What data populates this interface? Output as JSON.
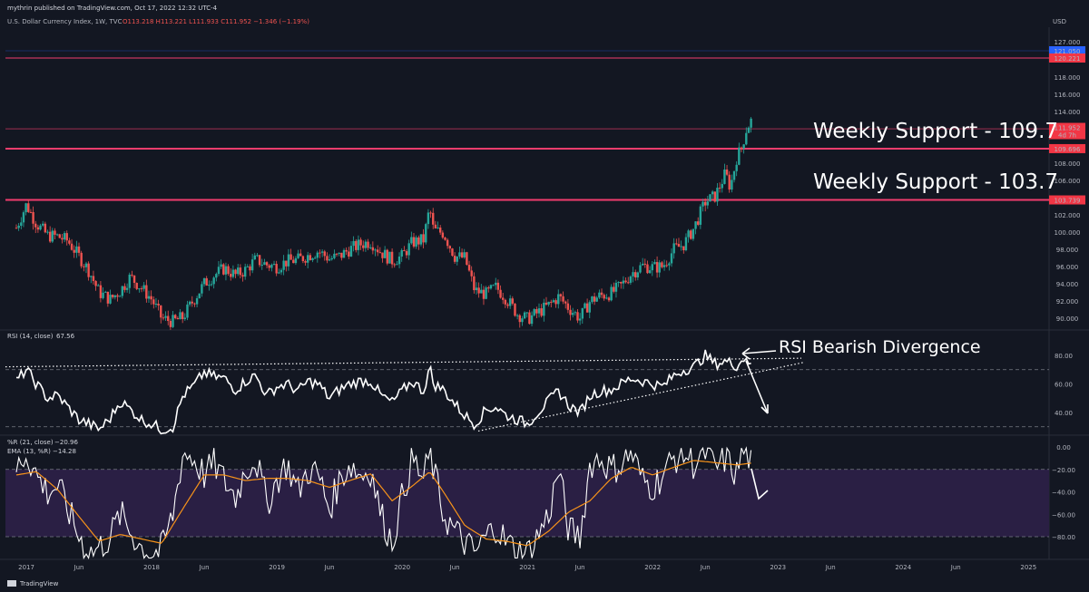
{
  "header": {
    "publisher": "mythrin published on TradingView.com, Oct 17, 2022 12:32 UTC-4",
    "symbol_line": "U.S. Dollar Currency Index, 1W, TVC",
    "ohlc": "O113.218  H113.221  L111.933  C111.952  −1.346 (−1.19%)",
    "currency": "USD"
  },
  "branding": {
    "logo_text": "TradingView"
  },
  "colors": {
    "background": "#131722",
    "up_candle": "#26a69a",
    "down_candle": "#ef5350",
    "support_line": "#f23d6d",
    "rsi_line": "#ffffff",
    "wr_line": "#ffffff",
    "ema_line": "#f7931a",
    "wr_band": "#2a1f44",
    "price_tag": "#f23645",
    "blue_tag": "#2962ff"
  },
  "chart_data": [
    {
      "type": "candlestick",
      "panel": "price",
      "title": "U.S. Dollar Currency Index, 1W, TVC",
      "x_ticks": [
        "2017",
        "Jun",
        "2018",
        "Jun",
        "2019",
        "Jun",
        "2020",
        "Jun",
        "2021",
        "Jun",
        "2022",
        "Jun",
        "2023",
        "Jun",
        "2024",
        "Jun",
        "2025"
      ],
      "y_ticks": [
        "90.000",
        "92.000",
        "94.000",
        "96.000",
        "98.000",
        "100.000",
        "102.000",
        "104.000",
        "106.000",
        "108.000",
        "110.000",
        "112.000",
        "114.000",
        "116.000",
        "118.000",
        "120.000",
        "122.000",
        "127.000"
      ],
      "ylim": [
        89,
        127
      ],
      "close_series": [
        [
          2016.92,
          100.5
        ],
        [
          2017.0,
          103.2
        ],
        [
          2017.08,
          101.0
        ],
        [
          2017.17,
          99.6
        ],
        [
          2017.25,
          99.5
        ],
        [
          2017.33,
          99.0
        ],
        [
          2017.42,
          97.2
        ],
        [
          2017.5,
          95.5
        ],
        [
          2017.58,
          93.0
        ],
        [
          2017.67,
          92.2
        ],
        [
          2017.75,
          93.2
        ],
        [
          2017.83,
          94.8
        ],
        [
          2017.92,
          93.5
        ],
        [
          2018.0,
          92.2
        ],
        [
          2018.08,
          90.0
        ],
        [
          2018.17,
          89.6
        ],
        [
          2018.25,
          90.1
        ],
        [
          2018.33,
          92.0
        ],
        [
          2018.42,
          94.0
        ],
        [
          2018.5,
          95.0
        ],
        [
          2018.58,
          95.8
        ],
        [
          2018.67,
          95.0
        ],
        [
          2018.75,
          95.6
        ],
        [
          2018.83,
          96.8
        ],
        [
          2018.92,
          96.2
        ],
        [
          2019.0,
          96.0
        ],
        [
          2019.08,
          96.6
        ],
        [
          2019.17,
          96.8
        ],
        [
          2019.25,
          97.3
        ],
        [
          2019.33,
          97.8
        ],
        [
          2019.42,
          96.9
        ],
        [
          2019.5,
          97.2
        ],
        [
          2019.58,
          98.0
        ],
        [
          2019.67,
          98.6
        ],
        [
          2019.75,
          98.9
        ],
        [
          2019.83,
          97.7
        ],
        [
          2019.92,
          96.7
        ],
        [
          2020.0,
          97.2
        ],
        [
          2020.08,
          98.8
        ],
        [
          2020.17,
          99.1
        ],
        [
          2020.22,
          102.8
        ],
        [
          2020.25,
          100.2
        ],
        [
          2020.33,
          99.9
        ],
        [
          2020.42,
          97.2
        ],
        [
          2020.5,
          97.0
        ],
        [
          2020.58,
          93.2
        ],
        [
          2020.67,
          92.8
        ],
        [
          2020.75,
          93.6
        ],
        [
          2020.83,
          92.3
        ],
        [
          2020.92,
          90.5
        ],
        [
          2021.0,
          89.9
        ],
        [
          2021.08,
          90.6
        ],
        [
          2021.17,
          91.5
        ],
        [
          2021.25,
          92.5
        ],
        [
          2021.33,
          91.2
        ],
        [
          2021.42,
          90.0
        ],
        [
          2021.5,
          92.0
        ],
        [
          2021.58,
          92.6
        ],
        [
          2021.67,
          92.9
        ],
        [
          2021.75,
          93.8
        ],
        [
          2021.83,
          95.2
        ],
        [
          2021.92,
          96.1
        ],
        [
          2022.0,
          95.9
        ],
        [
          2022.08,
          96.0
        ],
        [
          2022.17,
          98.0
        ],
        [
          2022.25,
          98.6
        ],
        [
          2022.33,
          100.5
        ],
        [
          2022.42,
          103.5
        ],
        [
          2022.5,
          104.2
        ],
        [
          2022.58,
          106.8
        ],
        [
          2022.62,
          105.2
        ],
        [
          2022.67,
          108.6
        ],
        [
          2022.71,
          109.8
        ],
        [
          2022.75,
          112.1
        ],
        [
          2022.79,
          113.0
        ],
        [
          2022.8,
          111.95
        ]
      ],
      "annotations": [
        {
          "text": "Weekly Support - 109.7",
          "level": 109.696,
          "tag": "109.696"
        },
        {
          "text": "Weekly Support - 103.7",
          "level": 103.739,
          "tag": "103.739"
        }
      ],
      "tags": [
        {
          "label": "121.050",
          "value": 121.05
        },
        {
          "label": "120.221",
          "value": 120.221
        },
        {
          "label": "111.952",
          "sub": "4d 7h",
          "value": 111.952
        }
      ]
    },
    {
      "type": "line",
      "panel": "rsi",
      "title": "RSI (14, close)",
      "current_value": "67.56",
      "y_ticks": [
        "40.00",
        "60.00",
        "80.00"
      ],
      "ylim": [
        22,
        90
      ],
      "levels": [
        70,
        30
      ],
      "annotation": "RSI Bearish Divergence",
      "series": [
        [
          2016.92,
          62
        ],
        [
          2017.0,
          70
        ],
        [
          2017.08,
          60
        ],
        [
          2017.17,
          50
        ],
        [
          2017.25,
          52
        ],
        [
          2017.33,
          44
        ],
        [
          2017.42,
          35
        ],
        [
          2017.5,
          32
        ],
        [
          2017.58,
          28
        ],
        [
          2017.67,
          36
        ],
        [
          2017.75,
          48
        ],
        [
          2017.83,
          42
        ],
        [
          2017.92,
          35
        ],
        [
          2018.0,
          32
        ],
        [
          2018.08,
          28
        ],
        [
          2018.17,
          30
        ],
        [
          2018.25,
          52
        ],
        [
          2018.33,
          58
        ],
        [
          2018.42,
          68
        ],
        [
          2018.5,
          65
        ],
        [
          2018.58,
          64
        ],
        [
          2018.67,
          56
        ],
        [
          2018.75,
          62
        ],
        [
          2018.83,
          66
        ],
        [
          2018.92,
          52
        ],
        [
          2019.0,
          58
        ],
        [
          2019.08,
          60
        ],
        [
          2019.17,
          55
        ],
        [
          2019.25,
          62
        ],
        [
          2019.33,
          60
        ],
        [
          2019.42,
          50
        ],
        [
          2019.5,
          56
        ],
        [
          2019.58,
          60
        ],
        [
          2019.67,
          62
        ],
        [
          2019.75,
          62
        ],
        [
          2019.83,
          52
        ],
        [
          2019.92,
          47
        ],
        [
          2020.0,
          55
        ],
        [
          2020.08,
          62
        ],
        [
          2020.17,
          55
        ],
        [
          2020.22,
          72
        ],
        [
          2020.25,
          60
        ],
        [
          2020.33,
          56
        ],
        [
          2020.42,
          46
        ],
        [
          2020.5,
          38
        ],
        [
          2020.58,
          32
        ],
        [
          2020.67,
          42
        ],
        [
          2020.75,
          44
        ],
        [
          2020.83,
          38
        ],
        [
          2020.92,
          35
        ],
        [
          2021.0,
          32
        ],
        [
          2021.08,
          40
        ],
        [
          2021.17,
          48
        ],
        [
          2021.25,
          55
        ],
        [
          2021.33,
          45
        ],
        [
          2021.42,
          40
        ],
        [
          2021.5,
          52
        ],
        [
          2021.58,
          55
        ],
        [
          2021.67,
          56
        ],
        [
          2021.75,
          60
        ],
        [
          2021.83,
          64
        ],
        [
          2021.92,
          62
        ],
        [
          2022.0,
          60
        ],
        [
          2022.08,
          58
        ],
        [
          2022.17,
          66
        ],
        [
          2022.25,
          70
        ],
        [
          2022.33,
          72
        ],
        [
          2022.42,
          80
        ],
        [
          2022.5,
          74
        ],
        [
          2022.58,
          76
        ],
        [
          2022.67,
          73
        ],
        [
          2022.71,
          76
        ],
        [
          2022.75,
          80
        ],
        [
          2022.8,
          67.56
        ]
      ]
    },
    {
      "type": "line",
      "panel": "williams_r",
      "title": "%R (21, close)",
      "current_value": "−20.96",
      "secondary_title": "EMA (13, %R)",
      "secondary_value": "−14.28",
      "y_ticks": [
        "0.00",
        "−20.00",
        "−40.00",
        "−60.00",
        "−80.00"
      ],
      "ylim": [
        -100,
        0
      ],
      "levels": [
        -20,
        -80
      ],
      "series": [
        {
          "name": "%R",
          "values": [
            [
              2016.92,
              -20
            ],
            [
              2017.0,
              -5
            ],
            [
              2017.08,
              -25
            ],
            [
              2017.17,
              -40
            ],
            [
              2017.25,
              -35
            ],
            [
              2017.33,
              -55
            ],
            [
              2017.42,
              -80
            ],
            [
              2017.5,
              -95
            ],
            [
              2017.58,
              -90
            ],
            [
              2017.67,
              -80
            ],
            [
              2017.75,
              -60
            ],
            [
              2017.83,
              -75
            ],
            [
              2017.92,
              -90
            ],
            [
              2018.0,
              -95
            ],
            [
              2018.08,
              -92
            ],
            [
              2018.17,
              -60
            ],
            [
              2018.25,
              -5
            ],
            [
              2018.33,
              -10
            ],
            [
              2018.42,
              -25
            ],
            [
              2018.5,
              -15
            ],
            [
              2018.58,
              -30
            ],
            [
              2018.67,
              -45
            ],
            [
              2018.75,
              -20
            ],
            [
              2018.83,
              -10
            ],
            [
              2018.92,
              -50
            ],
            [
              2019.0,
              -30
            ],
            [
              2019.08,
              -15
            ],
            [
              2019.17,
              -40
            ],
            [
              2019.25,
              -20
            ],
            [
              2019.33,
              -25
            ],
            [
              2019.42,
              -55
            ],
            [
              2019.5,
              -30
            ],
            [
              2019.58,
              -15
            ],
            [
              2019.67,
              -25
            ],
            [
              2019.75,
              -20
            ],
            [
              2019.83,
              -60
            ],
            [
              2019.92,
              -85
            ],
            [
              2020.0,
              -45
            ],
            [
              2020.08,
              -10
            ],
            [
              2020.17,
              -30
            ],
            [
              2020.22,
              -5
            ],
            [
              2020.25,
              -20
            ],
            [
              2020.33,
              -60
            ],
            [
              2020.42,
              -75
            ],
            [
              2020.5,
              -85
            ],
            [
              2020.58,
              -95
            ],
            [
              2020.67,
              -80
            ],
            [
              2020.75,
              -70
            ],
            [
              2020.83,
              -85
            ],
            [
              2020.92,
              -92
            ],
            [
              2021.0,
              -95
            ],
            [
              2021.08,
              -80
            ],
            [
              2021.17,
              -60
            ],
            [
              2021.25,
              -20
            ],
            [
              2021.33,
              -75
            ],
            [
              2021.42,
              -80
            ],
            [
              2021.5,
              -15
            ],
            [
              2021.58,
              -10
            ],
            [
              2021.67,
              -20
            ],
            [
              2021.75,
              -15
            ],
            [
              2021.83,
              -5
            ],
            [
              2021.92,
              -30
            ],
            [
              2022.0,
              -35
            ],
            [
              2022.08,
              -25
            ],
            [
              2022.17,
              -10
            ],
            [
              2022.25,
              -5
            ],
            [
              2022.33,
              -15
            ],
            [
              2022.42,
              -5
            ],
            [
              2022.5,
              -20
            ],
            [
              2022.58,
              -10
            ],
            [
              2022.67,
              -25
            ],
            [
              2022.71,
              -5
            ],
            [
              2022.75,
              -3
            ],
            [
              2022.8,
              -20.96
            ]
          ]
        },
        {
          "name": "EMA (13, %R)",
          "values": [
            [
              2016.92,
              -25
            ],
            [
              2017.08,
              -22
            ],
            [
              2017.25,
              -38
            ],
            [
              2017.42,
              -62
            ],
            [
              2017.58,
              -84
            ],
            [
              2017.75,
              -78
            ],
            [
              2017.92,
              -82
            ],
            [
              2018.08,
              -86
            ],
            [
              2018.25,
              -55
            ],
            [
              2018.42,
              -25
            ],
            [
              2018.58,
              -25
            ],
            [
              2018.75,
              -30
            ],
            [
              2018.92,
              -28
            ],
            [
              2019.08,
              -28
            ],
            [
              2019.25,
              -30
            ],
            [
              2019.42,
              -36
            ],
            [
              2019.58,
              -30
            ],
            [
              2019.75,
              -24
            ],
            [
              2019.92,
              -48
            ],
            [
              2020.08,
              -35
            ],
            [
              2020.22,
              -22
            ],
            [
              2020.33,
              -40
            ],
            [
              2020.5,
              -70
            ],
            [
              2020.67,
              -82
            ],
            [
              2020.83,
              -84
            ],
            [
              2021.0,
              -88
            ],
            [
              2021.17,
              -75
            ],
            [
              2021.33,
              -58
            ],
            [
              2021.5,
              -48
            ],
            [
              2021.67,
              -28
            ],
            [
              2021.83,
              -18
            ],
            [
              2022.0,
              -25
            ],
            [
              2022.17,
              -18
            ],
            [
              2022.33,
              -12
            ],
            [
              2022.5,
              -14
            ],
            [
              2022.67,
              -16
            ],
            [
              2022.8,
              -14.28
            ]
          ]
        }
      ]
    }
  ]
}
